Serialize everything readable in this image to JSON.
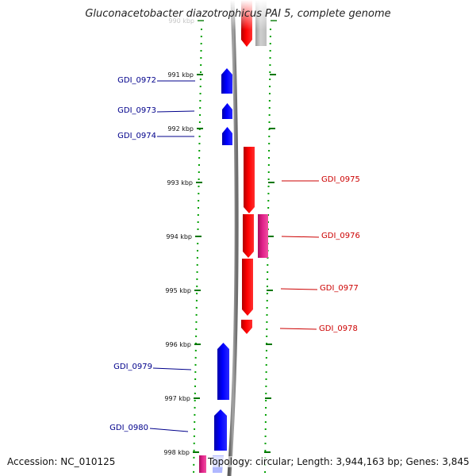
{
  "title": "Gluconacetobacter diazotrophicus PAI 5, complete genome",
  "footer": {
    "accession": "Accession: NC_010125",
    "summary": "Topology: circular; Length: 3,944,163 bp; Genes: 3,845"
  },
  "colors": {
    "forward_gene": "#0000ff",
    "reverse_gene": "#ff0000",
    "rna_gene": "#e0218a",
    "backbone": "#888888",
    "tick": "#007700",
    "forward_label": "#00008b",
    "reverse_label": "#cc0000"
  },
  "ticks": [
    {
      "label": "990 kbp",
      "kbp": 990
    },
    {
      "label": "991 kbp",
      "kbp": 991
    },
    {
      "label": "992 kbp",
      "kbp": 992
    },
    {
      "label": "993 kbp",
      "kbp": 993
    },
    {
      "label": "994 kbp",
      "kbp": 994
    },
    {
      "label": "995 kbp",
      "kbp": 995
    },
    {
      "label": "996 kbp",
      "kbp": 996
    },
    {
      "label": "997 kbp",
      "kbp": 997
    },
    {
      "label": "998 kbp",
      "kbp": 998
    }
  ],
  "genes": [
    {
      "name": "GDI_0972",
      "strand": "forward"
    },
    {
      "name": "GDI_0973",
      "strand": "forward"
    },
    {
      "name": "GDI_0974",
      "strand": "forward"
    },
    {
      "name": "GDI_0975",
      "strand": "reverse"
    },
    {
      "name": "GDI_0976",
      "strand": "reverse"
    },
    {
      "name": "GDI_0977",
      "strand": "reverse"
    },
    {
      "name": "GDI_0978",
      "strand": "reverse"
    },
    {
      "name": "GDI_0979",
      "strand": "forward"
    },
    {
      "name": "GDI_0980",
      "strand": "forward"
    }
  ]
}
